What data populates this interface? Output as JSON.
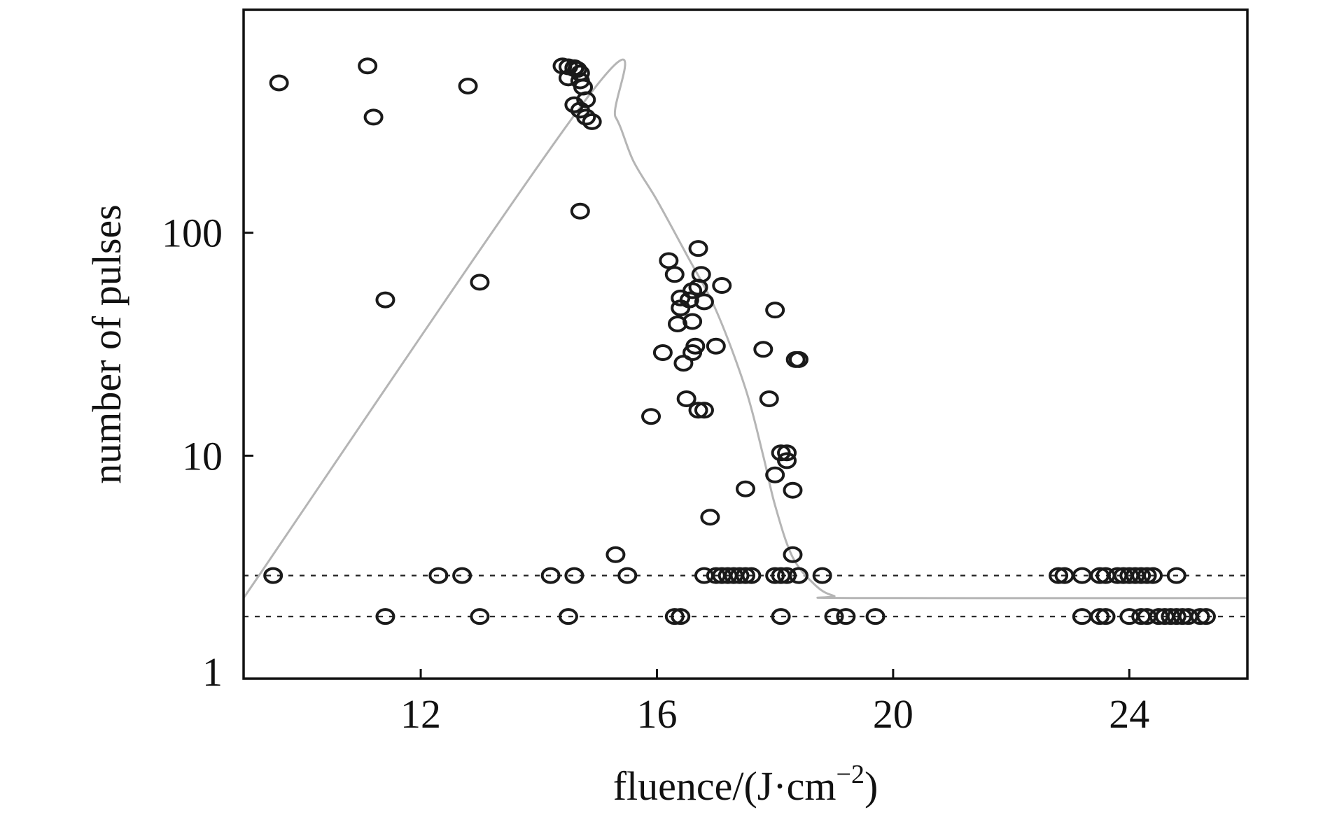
{
  "chart_data": {
    "type": "scatter",
    "title": "",
    "xlabel": "fluence/(J·cm",
    "xlabel_sup": "−2",
    "xlabel_suffix": ")",
    "ylabel": "number of pulses",
    "xlim": [
      9,
      26
    ],
    "ylim": [
      1,
      1000
    ],
    "yscale": "log",
    "x_ticks": [
      12,
      16,
      20,
      24
    ],
    "x_tick_labels": [
      "12",
      "16",
      "20",
      "24"
    ],
    "y_ticks": [
      1,
      10,
      100
    ],
    "y_tick_labels": [
      "1",
      "10",
      "100"
    ],
    "grid": false,
    "legend": "none",
    "colors": {
      "points": "#1a1a1a",
      "fit_curve": "#b5b5b5",
      "reference_lines": "#222222",
      "axes": "#111111"
    },
    "reference_lines": [
      {
        "y": 2.9,
        "style": "dashed"
      },
      {
        "y": 1.9,
        "style": "dashed"
      }
    ],
    "fit_curve": {
      "x": [
        9,
        14.9,
        15.3,
        15.6,
        16.0,
        16.5,
        17.0,
        17.5,
        17.8,
        18.0,
        18.3,
        18.7,
        19.0,
        19.3,
        26
      ],
      "y": [
        2.3,
        430,
        330,
        210,
        140,
        80,
        45,
        20,
        10,
        6,
        3.5,
        2.6,
        2.35,
        2.3,
        2.3
      ]
    },
    "series": [
      {
        "x": [
          9.6,
          11.1,
          11.2,
          11.4,
          12.8,
          13.0,
          14.4,
          14.5,
          14.6,
          14.6,
          14.65,
          14.7,
          14.7,
          14.75,
          14.8,
          14.5,
          14.6,
          14.7,
          14.8,
          14.9,
          14.7,
          15.3,
          15.9,
          16.1,
          16.2,
          16.3,
          16.4,
          16.35,
          16.4,
          16.45,
          16.5,
          16.55,
          16.6,
          16.6,
          16.6,
          16.65,
          16.7,
          16.75,
          16.7,
          16.8,
          16.7,
          16.8,
          16.9,
          17.0,
          17.1,
          17.5,
          17.8,
          17.9,
          18.0,
          18.0,
          18.1,
          18.2,
          18.2,
          18.3,
          18.3,
          18.35,
          18.4,
          9.5,
          12.3,
          12.7,
          14.2,
          14.6,
          15.5,
          16.8,
          17.0,
          17.1,
          17.2,
          17.3,
          17.4,
          17.5,
          17.6,
          18.0,
          18.1,
          18.2,
          18.4,
          18.8,
          22.8,
          22.9,
          23.2,
          23.5,
          23.6,
          23.8,
          23.9,
          24.0,
          24.1,
          24.2,
          24.3,
          24.4,
          24.8,
          11.4,
          13.0,
          14.5,
          16.3,
          16.4,
          18.1,
          19.0,
          19.2,
          19.7,
          23.2,
          23.5,
          23.6,
          24.0,
          24.2,
          24.3,
          24.5,
          24.6,
          24.7,
          24.8,
          24.9,
          25.0,
          25.2,
          25.3
        ],
        "y": [
          470,
          560,
          330,
          50,
          455,
          60,
          560,
          555,
          545,
          550,
          540,
          520,
          480,
          450,
          395,
          495,
          375,
          355,
          330,
          315,
          125,
          3.6,
          15,
          29,
          75,
          65,
          46,
          39,
          51,
          26,
          18,
          50,
          55,
          40,
          29,
          31,
          85,
          65,
          16,
          49,
          57,
          16,
          5.3,
          31,
          58,
          7.1,
          30,
          18,
          45,
          8.2,
          10.3,
          10.3,
          9.5,
          7.0,
          3.6,
          27,
          27,
          2.9,
          2.9,
          2.9,
          2.9,
          2.9,
          2.9,
          2.9,
          2.9,
          2.9,
          2.9,
          2.9,
          2.9,
          2.9,
          2.9,
          2.9,
          2.9,
          2.9,
          2.9,
          2.9,
          2.9,
          2.9,
          2.9,
          2.9,
          2.9,
          2.9,
          2.9,
          2.9,
          2.9,
          2.9,
          2.9,
          2.9,
          2.9,
          1.9,
          1.9,
          1.9,
          1.9,
          1.9,
          1.9,
          1.9,
          1.9,
          1.9,
          1.9,
          1.9,
          1.9,
          1.9,
          1.9,
          1.9,
          1.9,
          1.9,
          1.9,
          1.9,
          1.9,
          1.9,
          1.9,
          1.9
        ]
      }
    ]
  }
}
